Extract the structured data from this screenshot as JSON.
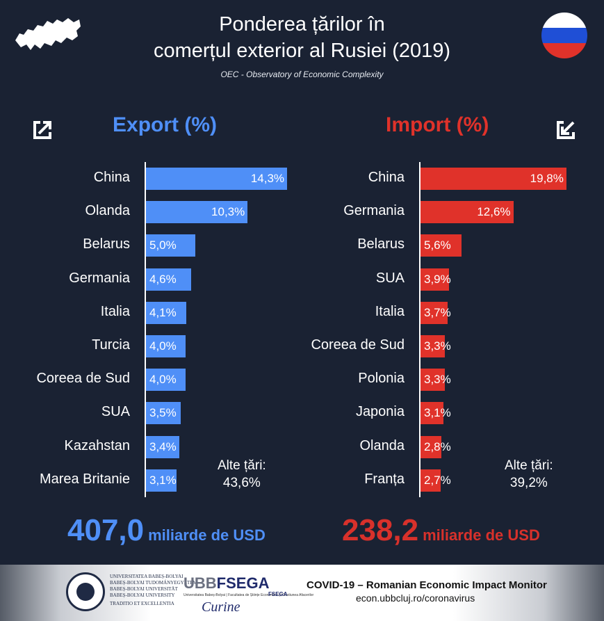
{
  "header": {
    "title_line1": "Ponderea țărilor în",
    "title_line2": "comerțul exterior al Rusiei (2019)",
    "source": "OEC - Observatory of Economic Complexity"
  },
  "colors": {
    "background": "#1a2233",
    "export": "#4f8ff7",
    "import": "#e0322a",
    "flag_white": "#ffffff",
    "flag_blue": "#1f4fd6",
    "flag_red": "#e0322a"
  },
  "icons": {
    "map": "russia-map-icon",
    "flag": "russia-flag-icon",
    "export": "export-arrow-icon",
    "import": "import-arrow-icon"
  },
  "chart_data": [
    {
      "type": "bar",
      "orientation": "horizontal",
      "title": "Export (%)",
      "categories": [
        "China",
        "Olanda",
        "Belarus",
        "Germania",
        "Italia",
        "Turcia",
        "Coreea de Sud",
        "SUA",
        "Kazahstan",
        "Marea Britanie"
      ],
      "values": [
        14.3,
        10.3,
        5.0,
        4.6,
        4.1,
        4.0,
        4.0,
        3.5,
        3.4,
        3.1
      ],
      "labels": [
        "14,3%",
        "10,3%",
        "5,0%",
        "4,6%",
        "4,1%",
        "4,0%",
        "4,0%",
        "3,5%",
        "3,4%",
        "3,1%"
      ],
      "other_label": "Alte țări:",
      "other_value": "43,6%",
      "total_value": "407,0",
      "total_unit": "miliarde de USD"
    },
    {
      "type": "bar",
      "orientation": "horizontal",
      "title": "Import (%)",
      "categories": [
        "China",
        "Germania",
        "Belarus",
        "SUA",
        "Italia",
        "Coreea de Sud",
        "Polonia",
        "Japonia",
        "Olanda",
        "Franța"
      ],
      "values": [
        19.8,
        12.6,
        5.6,
        3.9,
        3.7,
        3.3,
        3.3,
        3.1,
        2.8,
        2.7
      ],
      "labels": [
        "19,8%",
        "12,6%",
        "5,6%",
        "3,9%",
        "3,7%",
        "3,3%",
        "3,3%",
        "3,1%",
        "2,8%",
        "2,7%"
      ],
      "other_label": "Alte țări:",
      "other_value": "39,2%",
      "total_value": "238,2",
      "total_unit": "miliarde de USD"
    }
  ],
  "footer": {
    "univ_lines": [
      "UNIVERSITATEA BABEȘ-BOLYAI",
      "BABEȘ-BOLYAI TUDOMÁNYEGYETEM",
      "BABEȘ-BOLYAI UNIVERSITÄT",
      "BABEȘ-BOLYAI UNIVERSITY",
      "TRADITIO ET EXCELLENTIA"
    ],
    "ubb_part1": "UBB",
    "ubb_part2": "FSEGA",
    "ubb_sub": "Universitatea Babeș-Bolyai | Facultatea de Științe Economice și Gestiunea Afacerilor",
    "fsega_small": "FSEGA",
    "cursive": "Curine",
    "covid_title": "COVID-19 – Romanian Economic Impact Monitor",
    "covid_url": "econ.ubbcluj.ro/coronavirus"
  }
}
